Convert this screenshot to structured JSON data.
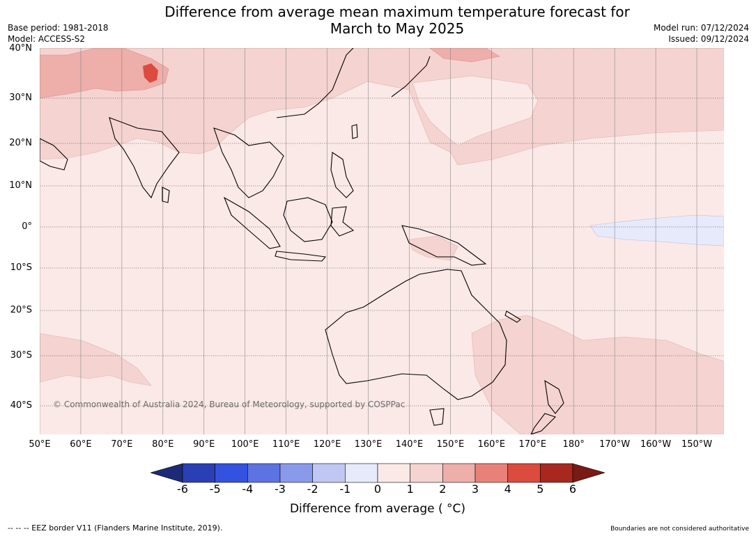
{
  "title_line1": "Difference from average mean maximum temperature forecast for",
  "title_line2": "March to May 2025",
  "base_period": "Base period: 1981-2018",
  "model": "Model: ACCESS-S2",
  "model_run": "Model run: 07/12/2024",
  "issued": "Issued: 09/12/2024",
  "lat_labels": [
    "40°N",
    "30°N",
    "20°N",
    "10°N",
    "0°",
    "10°S",
    "20°S",
    "30°S",
    "40°S"
  ],
  "lon_labels": [
    "50°E",
    "60°E",
    "70°E",
    "80°E",
    "90°E",
    "100°E",
    "110°E",
    "120°E",
    "130°E",
    "140°E",
    "150°E",
    "160°E",
    "170°E",
    "180°",
    "170°W",
    "160°W",
    "150°W"
  ],
  "copyright": "© Commonwealth of Australia 2024, Bureau of Meteorology, supported by COSPPac",
  "colorbar": {
    "ticks": [
      "-6",
      "-5",
      "-4",
      "-3",
      "-2",
      "-1",
      "0",
      "1",
      "2",
      "3",
      "4",
      "5",
      "6"
    ],
    "colors": [
      "#1c2a78",
      "#2b3fb5",
      "#3352df",
      "#5d73e2",
      "#8a9aea",
      "#c0c7f3",
      "#e7eafb",
      "#fbe9e7",
      "#f5d3d0",
      "#eeaea9",
      "#e88279",
      "#db4b3e",
      "#a8281f",
      "#7a1a14"
    ],
    "label": "Difference from average ( °C)"
  },
  "footer_left": "--  --  -- EEZ border V11 (Flanders Marine Institute, 2019).",
  "footer_right": "Boundaries are not considered authoritative"
}
